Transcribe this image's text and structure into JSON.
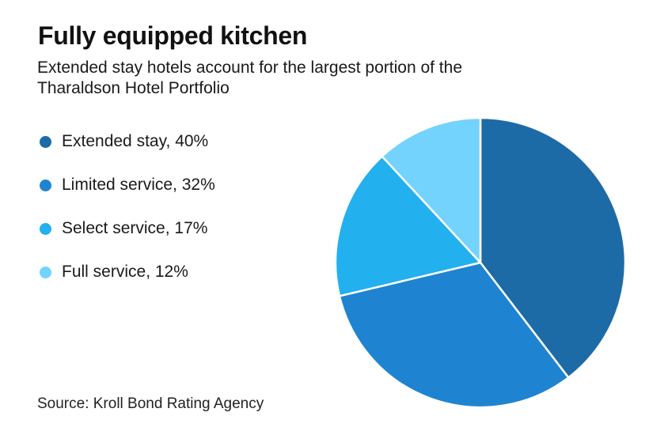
{
  "page": {
    "background_color": "#ffffff",
    "text_color": "#1a1a1a"
  },
  "header": {
    "title": "Fully equipped kitchen",
    "subtitle_lines": [
      "Extended stay hotels account for the largest portion of the",
      "Tharaldson Hotel Portfolio"
    ]
  },
  "chart_data": {
    "type": "pie",
    "title": "Fully equipped kitchen",
    "subtitle": "Extended stay hotels account for the largest portion of the Tharaldson Hotel Portfolio",
    "start_angle": "12 o'clock",
    "direction": "clockwise",
    "legend_position": "left",
    "slice_border_color": "#ffffff",
    "slice_border_width": 2.5,
    "slices": [
      {
        "label": "Extended stay",
        "value": 40,
        "display": "Extended stay, 40%",
        "color": "#1C6BA6"
      },
      {
        "label": "Limited service",
        "value": 32,
        "display": "Limited service, 32%",
        "color": "#1E84D1"
      },
      {
        "label": "Select service",
        "value": 17,
        "display": "Select service, 17%",
        "color": "#23B0EE"
      },
      {
        "label": "Full service",
        "value": 12,
        "display": "Full service, 12%",
        "color": "#73D3FC"
      }
    ]
  },
  "source": {
    "text": "Source: Kroll Bond Rating Agency"
  }
}
